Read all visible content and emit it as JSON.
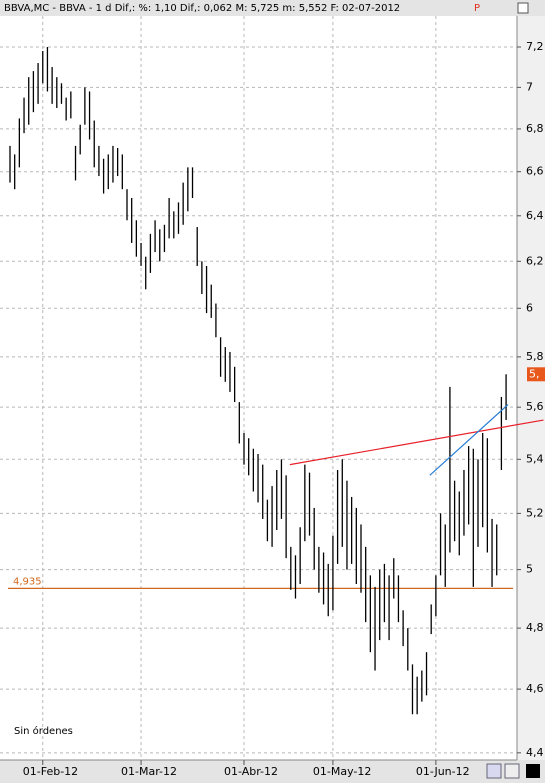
{
  "chart_data": {
    "type": "ohlc",
    "title": "BBVA,MC - BBVA -  1 d Dif,: %: 1,10 Dif,: 0,062 M: 5,725 m: 5,552 F: 02-07-2012",
    "title_flag": "P",
    "note": "Sin órdenes",
    "log_scale": true,
    "grid": true,
    "ylim": [
      4.378,
      7.44
    ],
    "yticks": [
      {
        "value": 4.4,
        "label": "4,4"
      },
      {
        "value": 4.6,
        "label": "4,6"
      },
      {
        "value": 4.8,
        "label": "4,8"
      },
      5,
      {
        "value": 5.2,
        "label": "5,2"
      },
      {
        "value": 5.4,
        "label": "5,4"
      },
      {
        "value": 5.6,
        "label": "5,6"
      },
      {
        "value": 5.8,
        "label": "5,8"
      },
      6,
      {
        "value": 6.2,
        "label": "6,2"
      },
      {
        "value": 6.4,
        "label": "6,4"
      },
      {
        "value": 6.6,
        "label": "6,6"
      },
      {
        "value": 6.8,
        "label": "6,8"
      },
      7,
      {
        "value": 7.2,
        "label": "7,2"
      }
    ],
    "categories": [
      null,
      null,
      null,
      null,
      null,
      null,
      null,
      "01-Feb-12",
      null,
      null,
      null,
      null,
      null,
      null,
      null,
      null,
      null,
      null,
      null,
      null,
      null,
      null,
      null,
      null,
      null,
      null,
      null,
      null,
      "01-Mar-12",
      null,
      null,
      null,
      null,
      null,
      null,
      null,
      null,
      null,
      null,
      null,
      null,
      null,
      null,
      null,
      null,
      null,
      null,
      null,
      null,
      null,
      "01-Abr-12",
      null,
      null,
      null,
      null,
      null,
      null,
      null,
      null,
      null,
      null,
      null,
      null,
      null,
      null,
      null,
      null,
      null,
      null,
      "01-May-12",
      null,
      null,
      null,
      null,
      null,
      null,
      null,
      null,
      null,
      null,
      null,
      null,
      null,
      null,
      null,
      null,
      null,
      null,
      null,
      null,
      null,
      "01-Jun-12",
      null,
      null,
      null,
      null,
      null,
      null,
      null,
      null,
      null,
      null,
      null,
      null,
      null,
      null,
      null
    ],
    "series": [
      {
        "name": "High",
        "color": "#000000",
        "values": [
          6.72,
          6.68,
          6.85,
          6.95,
          7.05,
          7.08,
          7.12,
          7.18,
          7.2,
          7.1,
          7.05,
          7.02,
          6.95,
          6.98,
          6.72,
          6.82,
          7.0,
          6.98,
          6.84,
          6.72,
          6.66,
          6.68,
          6.72,
          6.71,
          6.68,
          6.52,
          6.48,
          6.38,
          6.28,
          6.22,
          6.32,
          6.38,
          6.34,
          6.36,
          6.48,
          6.42,
          6.46,
          6.55,
          6.62,
          6.62,
          6.35,
          6.2,
          6.18,
          6.1,
          6.02,
          5.88,
          5.84,
          5.82,
          5.76,
          5.62,
          5.5,
          5.48,
          5.44,
          5.42,
          5.38,
          5.25,
          5.3,
          5.36,
          5.4,
          5.34,
          5.08,
          5.05,
          5.15,
          5.38,
          5.35,
          5.22,
          5.08,
          5.06,
          5.02,
          5.12,
          5.36,
          5.4,
          5.32,
          5.26,
          5.22,
          5.16,
          5.08,
          4.98,
          4.94,
          5.0,
          5.02,
          4.98,
          5.04,
          4.98,
          4.86,
          4.8,
          4.68,
          4.64,
          4.66,
          4.72,
          4.88,
          4.98,
          5.2,
          5.16,
          5.68,
          5.32,
          5.28,
          5.36,
          5.45,
          5.44,
          5.4,
          5.5,
          5.48,
          5.18,
          5.16,
          5.64,
          5.73
        ]
      },
      {
        "name": "Low",
        "color": "#000000",
        "values": [
          6.55,
          6.52,
          6.62,
          6.78,
          6.82,
          6.88,
          6.92,
          7.02,
          6.98,
          6.92,
          6.9,
          6.92,
          6.84,
          6.85,
          6.56,
          6.68,
          6.82,
          6.75,
          6.62,
          6.58,
          6.5,
          6.52,
          6.55,
          6.58,
          6.52,
          6.38,
          6.28,
          6.22,
          6.18,
          6.08,
          6.15,
          6.24,
          6.2,
          6.24,
          6.3,
          6.3,
          6.32,
          6.36,
          6.42,
          6.48,
          6.18,
          6.06,
          5.98,
          5.96,
          5.88,
          5.72,
          5.7,
          5.66,
          5.62,
          5.46,
          5.38,
          5.34,
          5.28,
          5.24,
          5.18,
          5.1,
          5.08,
          5.14,
          5.18,
          5.04,
          4.93,
          4.9,
          4.95,
          5.1,
          5.12,
          5.0,
          4.92,
          4.88,
          4.84,
          4.86,
          5.02,
          5.08,
          5.0,
          5.02,
          4.95,
          4.92,
          4.82,
          4.72,
          4.66,
          4.76,
          4.82,
          4.76,
          4.9,
          4.82,
          4.74,
          4.66,
          4.52,
          4.52,
          4.56,
          4.58,
          4.78,
          4.84,
          4.98,
          4.94,
          5.06,
          5.1,
          5.05,
          5.12,
          5.16,
          4.94,
          5.08,
          5.15,
          5.06,
          4.94,
          4.98,
          5.36,
          5.55
        ]
      }
    ],
    "level": {
      "value": 4.935,
      "label": "4,935",
      "color": "#d2691e"
    },
    "last_price": {
      "label": "5,",
      "color": "#e8581c"
    },
    "trendlines": [
      {
        "color": "#e8202a",
        "x": [
          59.8,
          114
        ],
        "y": [
          5.38,
          5.55
        ]
      },
      {
        "color": "#2a7fd4",
        "x": [
          89.7,
          106.4
        ],
        "y": [
          5.34,
          5.61
        ]
      }
    ]
  }
}
